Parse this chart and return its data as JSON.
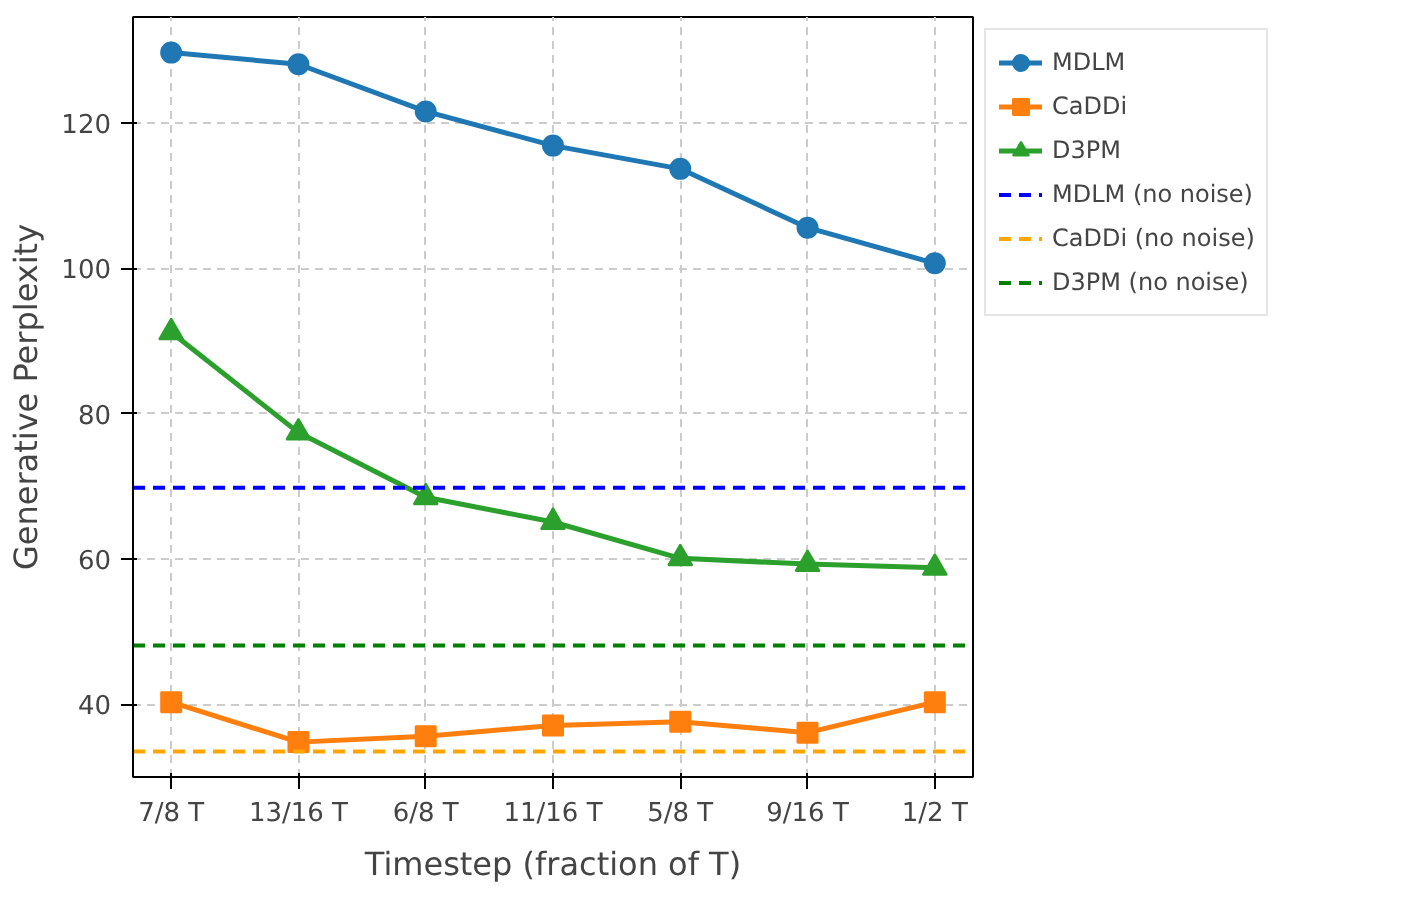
{
  "chart_data": {
    "type": "line",
    "xlabel": "Timestep (fraction of T)",
    "ylabel": "Generative Perplexity",
    "categories": [
      "7/8 T",
      "13/16 T",
      "6/8 T",
      "11/16 T",
      "5/8 T",
      "9/16 T",
      "1/2 T"
    ],
    "series": [
      {
        "name": "MDLM",
        "color": "#1f77b4",
        "marker": "circle",
        "values": [
          129.7,
          128.1,
          121.6,
          116.9,
          113.7,
          105.6,
          100.7
        ]
      },
      {
        "name": "CaDDi",
        "color": "#ff7f0e",
        "marker": "square",
        "values": [
          40.3,
          34.8,
          35.6,
          37.1,
          37.6,
          36.1,
          40.3
        ]
      },
      {
        "name": "D3PM",
        "color": "#2ca02c",
        "marker": "triangle",
        "values": [
          91.2,
          77.4,
          68.5,
          65.1,
          60.1,
          59.3,
          58.8
        ]
      }
    ],
    "ref_lines": [
      {
        "axis": "y",
        "value": 69.8,
        "label": "MDLM (no noise)",
        "color": "#0000ff",
        "line_style": "dashed"
      },
      {
        "axis": "y",
        "value": 33.5,
        "label": "CaDDi (no noise)",
        "color": "#ffa500",
        "line_style": "dashed"
      },
      {
        "axis": "y",
        "value": 48.1,
        "label": "D3PM (no noise)",
        "color": "#008000",
        "line_style": "dashed"
      }
    ],
    "ylim": [
      30,
      134.6
    ],
    "yticks": [
      40,
      60,
      80,
      100,
      120
    ],
    "grid": true,
    "legend": "right"
  }
}
